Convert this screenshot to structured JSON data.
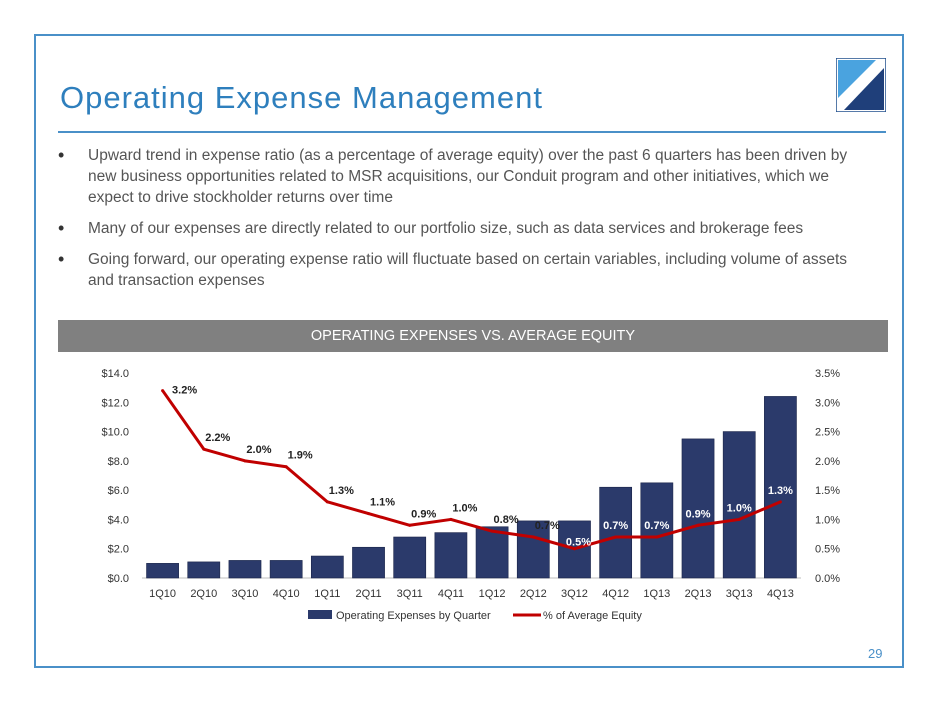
{
  "slide": {
    "title": "Operating Expense Management",
    "page_number": "29",
    "bullets": [
      "Upward trend in expense ratio (as a percentage of average equity) over the past 6 quarters has been driven by new business opportunities related to MSR acquisitions, our Conduit program and other initiatives, which we expect to drive stockholder returns over time",
      "Many of our expenses are directly related to our portfolio size, such as data services and brokerage fees",
      "Going forward, our operating expense ratio will fluctuate based on certain variables, including volume of assets and transaction expenses"
    ],
    "banner": "OPERATING EXPENSES VS. AVERAGE EQUITY",
    "colors": {
      "accent": "#2e7fbd",
      "bar": "#2b3a6b",
      "line": "#c00000",
      "banner": "#808080"
    }
  },
  "chart_data": {
    "type": "bar",
    "title": "OPERATING EXPENSES VS. AVERAGE EQUITY",
    "categories": [
      "1Q10",
      "2Q10",
      "3Q10",
      "4Q10",
      "1Q11",
      "2Q11",
      "3Q11",
      "4Q11",
      "1Q12",
      "2Q12",
      "3Q12",
      "4Q12",
      "1Q13",
      "2Q13",
      "3Q13",
      "4Q13"
    ],
    "series": [
      {
        "name": "Operating Expenses by Quarter",
        "kind": "bar",
        "axis": "left",
        "values": [
          1.0,
          1.1,
          1.2,
          1.2,
          1.5,
          2.1,
          2.8,
          3.1,
          3.5,
          3.9,
          3.9,
          6.2,
          6.5,
          9.5,
          10.0,
          12.4
        ]
      },
      {
        "name": "% of Average Equity",
        "kind": "line",
        "axis": "right",
        "values": [
          3.2,
          2.2,
          2.0,
          1.9,
          1.3,
          1.1,
          0.9,
          1.0,
          0.8,
          0.7,
          0.5,
          0.7,
          0.7,
          0.9,
          1.0,
          1.3
        ],
        "labels": [
          "3.2%",
          "2.2%",
          "2.0%",
          "1.9%",
          "1.3%",
          "1.1%",
          "0.9%",
          "1.0%",
          "0.8%",
          "0.7%",
          "0.5%",
          "0.7%",
          "0.7%",
          "0.9%",
          "1.0%",
          "1.3%"
        ]
      }
    ],
    "y_left": {
      "ylim": [
        0,
        14
      ],
      "ticks": [
        "$0.0",
        "$2.0",
        "$4.0",
        "$6.0",
        "$8.0",
        "$10.0",
        "$12.0",
        "$14.0"
      ]
    },
    "y_right": {
      "ylim": [
        0,
        3.5
      ],
      "ticks": [
        "0.0%",
        "0.5%",
        "1.0%",
        "1.5%",
        "2.0%",
        "2.5%",
        "3.0%",
        "3.5%"
      ]
    },
    "legend": [
      "Operating Expenses by Quarter",
      "% of Average Equity"
    ],
    "legend_position": "bottom",
    "grid": false
  }
}
